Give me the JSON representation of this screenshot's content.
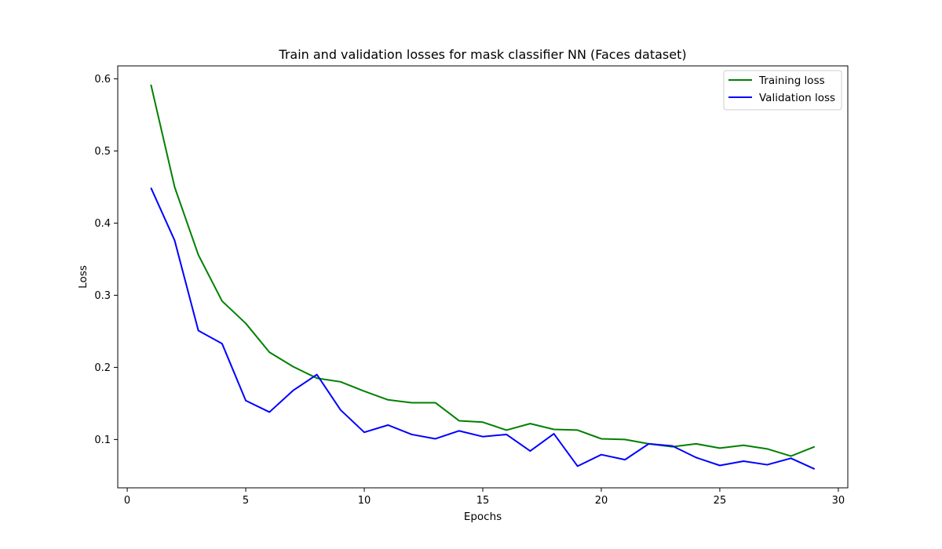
{
  "chart_data": {
    "type": "line",
    "title": "Train and validation losses for mask classifier NN (Faces dataset)",
    "xlabel": "Epochs",
    "ylabel": "Loss",
    "xlim": [
      -0.4,
      30.4
    ],
    "ylim": [
      0.033,
      0.618
    ],
    "xticks": [
      0,
      5,
      10,
      15,
      20,
      25,
      30
    ],
    "yticks": [
      0.1,
      0.2,
      0.3,
      0.4,
      0.5,
      0.6
    ],
    "grid": false,
    "legend_position": "top-right",
    "x": [
      1,
      2,
      3,
      4,
      5,
      6,
      7,
      8,
      9,
      10,
      11,
      12,
      13,
      14,
      15,
      16,
      17,
      18,
      19,
      20,
      21,
      22,
      23,
      24,
      25,
      26,
      27,
      28,
      29
    ],
    "series": [
      {
        "name": "Training loss",
        "color": "#008000",
        "values": [
          0.592,
          0.45,
          0.356,
          0.292,
          0.261,
          0.221,
          0.201,
          0.185,
          0.18,
          0.167,
          0.155,
          0.151,
          0.151,
          0.126,
          0.124,
          0.113,
          0.122,
          0.114,
          0.113,
          0.101,
          0.1,
          0.094,
          0.09,
          0.094,
          0.088,
          0.092,
          0.087,
          0.077,
          0.09
        ]
      },
      {
        "name": "Validation loss",
        "color": "#0000ff",
        "values": [
          0.449,
          0.376,
          0.251,
          0.233,
          0.154,
          0.138,
          0.168,
          0.19,
          0.141,
          0.11,
          0.12,
          0.107,
          0.101,
          0.112,
          0.104,
          0.107,
          0.084,
          0.108,
          0.063,
          0.079,
          0.072,
          0.094,
          0.091,
          0.075,
          0.064,
          0.07,
          0.065,
          0.074,
          0.059
        ]
      }
    ]
  }
}
